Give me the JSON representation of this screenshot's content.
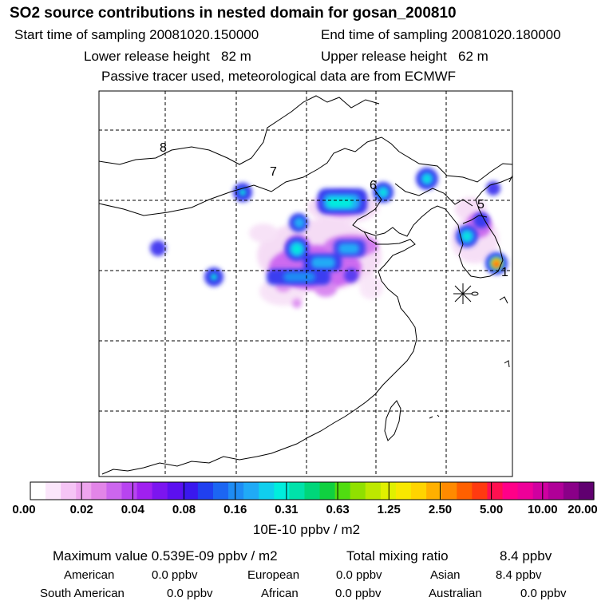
{
  "header": {
    "title": "SO2 source contributions in nested domain for gosan_200810",
    "start_label": "Start time of sampling 20081020.150000",
    "end_label": "End time of sampling 20081020.180000",
    "lower_label": "Lower release height   82 m",
    "upper_label": "Upper release height   62 m",
    "info": "Passive tracer used, meteorological data are from ECMWF"
  },
  "map": {
    "region_labels": [
      "8",
      "7",
      "6",
      "5",
      "1"
    ],
    "receptor_marker": "asterisk-receptor"
  },
  "colorbar": {
    "ticks": [
      "0.00",
      "0.02",
      "0.04",
      "0.08",
      "0.16",
      "0.31",
      "0.63",
      "1.25",
      "2.50",
      "5.00",
      "10.00",
      "20.00"
    ],
    "unit": "10E-10 ppbv / m2",
    "colors": [
      "#ffffff",
      "#fbe6fb",
      "#f5c4f5",
      "#eea5ee",
      "#e285e8",
      "#cc66ee",
      "#b844f0",
      "#a020f0",
      "#7c15f0",
      "#5c10f0",
      "#3a18ee",
      "#2040f0",
      "#1c66f2",
      "#1e8cf4",
      "#20aaf6",
      "#10cfee",
      "#00eedd",
      "#00e2aa",
      "#00d67a",
      "#10d040",
      "#50dc10",
      "#90e000",
      "#bde800",
      "#e0f000",
      "#f8e800",
      "#ffd400",
      "#ffb000",
      "#ff8a00",
      "#ff6000",
      "#ff3a10",
      "#ff1050",
      "#ff0088",
      "#ee0099",
      "#d000a0",
      "#b00098",
      "#8a0088",
      "#600070"
    ]
  },
  "stats": {
    "max_label": "Maximum value  0.539E-09 ppbv / m2",
    "total_label": "Total mixing ratio",
    "total_value": "8.4 ppbv",
    "sources": [
      {
        "name": "American",
        "value": "0.0 ppbv"
      },
      {
        "name": "European",
        "value": "0.0 ppbv"
      },
      {
        "name": "Asian",
        "value": "8.4 ppbv"
      },
      {
        "name": "South American",
        "value": "0.0 ppbv"
      },
      {
        "name": "African",
        "value": "0.0 ppbv"
      },
      {
        "name": "Australian",
        "value": "0.0 ppbv"
      }
    ]
  }
}
